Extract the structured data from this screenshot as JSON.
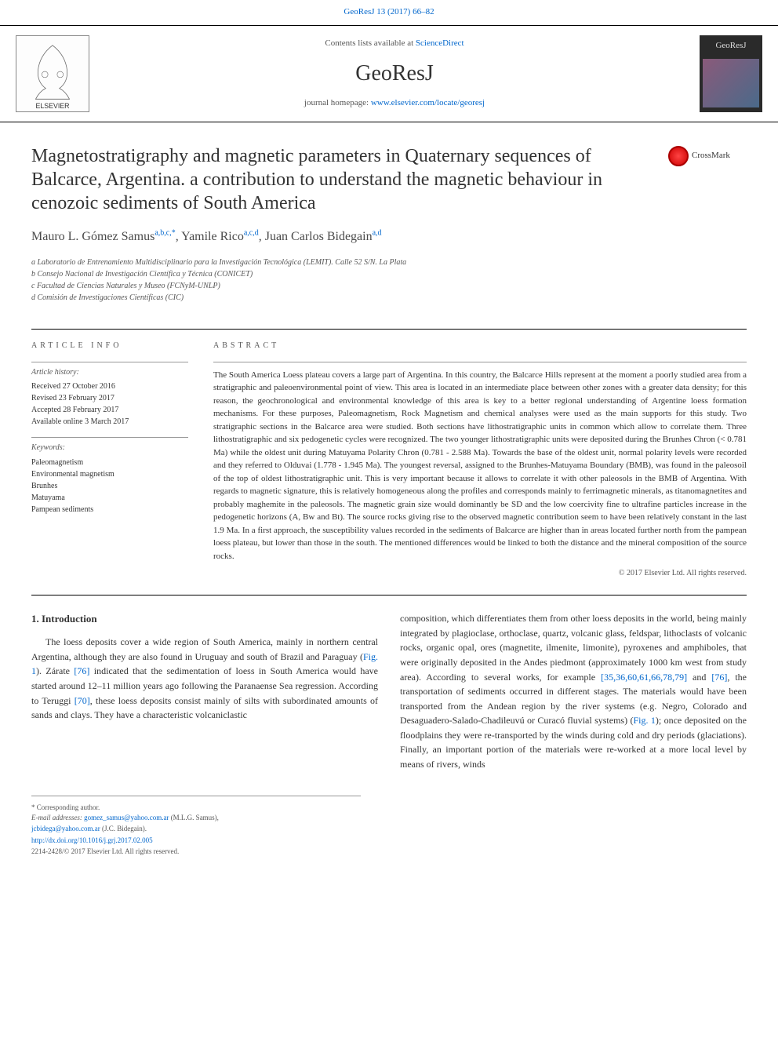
{
  "colors": {
    "link": "#0066cc",
    "text": "#2a2a2a",
    "muted": "#555555",
    "border_dark": "#000000",
    "border_light": "#999999",
    "background": "#ffffff"
  },
  "typography": {
    "body_fontsize": 13,
    "title_fontsize": 24,
    "journal_fontsize": 28,
    "abstract_fontsize": 11,
    "affiliation_fontsize": 10
  },
  "page_citation": "GeoResJ 13 (2017) 66–82",
  "header": {
    "contents_prefix": "Contents lists available at ",
    "contents_link": "ScienceDirect",
    "journal": "GeoResJ",
    "homepage_prefix": "journal homepage: ",
    "homepage_link": "www.elsevier.com/locate/georesj",
    "publisher_logo_alt": "ELSEVIER",
    "cover_title": "GeoResJ"
  },
  "crossmark": "CrossMark",
  "title": "Magnetostratigraphy and magnetic parameters in Quaternary sequences of Balcarce, Argentina. a contribution to understand the magnetic behaviour in cenozoic sediments of South America",
  "authors_html": "Mauro L. Gómez Samus",
  "authors": [
    {
      "name": "Mauro L. Gómez Samus",
      "sup": "a,b,c,*"
    },
    {
      "name": "Yamile Rico",
      "sup": "a,c,d"
    },
    {
      "name": "Juan Carlos Bidegain",
      "sup": "a,d"
    }
  ],
  "affiliations": [
    "a Laboratorio de Entrenamiento Multidisciplinario para la Investigación Tecnológica (LEMIT). Calle 52 S/N. La Plata",
    "b Consejo Nacional de Investigación Científica y Técnica (CONICET)",
    "c Facultad de Ciencias Naturales y Museo (FCNyM-UNLP)",
    "d Comisión de Investigaciones Científicas (CIC)"
  ],
  "article_info": {
    "heading": "article info",
    "history_label": "Article history:",
    "history": [
      "Received 27 October 2016",
      "Revised 23 February 2017",
      "Accepted 28 February 2017",
      "Available online 3 March 2017"
    ],
    "keywords_label": "Keywords:",
    "keywords": [
      "Paleomagnetism",
      "Environmental magnetism",
      "Brunhes",
      "Matuyama",
      "Pampean sediments"
    ]
  },
  "abstract": {
    "heading": "abstract",
    "text": "The South America Loess plateau covers a large part of Argentina. In this country, the Balcarce Hills represent at the moment a poorly studied area from a stratigraphic and paleoenvironmental point of view. This area is located in an intermediate place between other zones with a greater data density; for this reason, the geochronological and environmental knowledge of this area is key to a better regional understanding of Argentine loess formation mechanisms. For these purposes, Paleomagnetism, Rock Magnetism and chemical analyses were used as the main supports for this study. Two stratigraphic sections in the Balcarce area were studied. Both sections have lithostratigraphic units in common which allow to correlate them. Three lithostratigraphic and six pedogenetic cycles were recognized. The two younger lithostratigraphic units were deposited during the Brunhes Chron (< 0.781 Ma) while the oldest unit during Matuyama Polarity Chron (0.781 - 2.588 Ma). Towards the base of the oldest unit, normal polarity levels were recorded and they referred to Olduvai (1.778 - 1.945 Ma). The youngest reversal, assigned to the Brunhes-Matuyama Boundary (BMB), was found in the paleosoil of the top of oldest lithostratigraphic unit. This is very important because it allows to correlate it with other paleosols in the BMB of Argentina. With regards to magnetic signature, this is relatively homogeneous along the profiles and corresponds mainly to ferrimagnetic minerals, as titanomagnetites and probably maghemite in the paleosols. The magnetic grain size would dominantly be SD and the low coercivity fine to ultrafine particles increase in the pedogenetic horizons (A, Bw and Bt). The source rocks giving rise to the observed magnetic contribution seem to have been relatively constant in the last 1.9 Ma. In a first approach, the susceptibility values recorded in the sediments of Balcarce are higher than in areas located further north from the pampean loess plateau, but lower than those in the south. The mentioned differences would be linked to both the distance and the mineral composition of the source rocks.",
    "copyright": "© 2017 Elsevier Ltd. All rights reserved."
  },
  "body": {
    "section_heading": "1. Introduction",
    "col1": "The loess deposits cover a wide region of South America, mainly in northern central Argentina, although they are also found in Uruguay and south of Brazil and Paraguay (Fig. 1). Zárate [76] indicated that the sedimentation of loess in South America would have started around 12–11 million years ago following the Paranaense Sea regression. According to Teruggi [70], these loess deposits consist mainly of silts with subordinated amounts of sands and clays. They have a characteristic volcaniclastic",
    "col1_refs": {
      "fig": "Fig. 1",
      "r76": "[76]",
      "r70": "[70]"
    },
    "col2": "composition, which differentiates them from other loess deposits in the world, being mainly integrated by plagioclase, orthoclase, quartz, volcanic glass, feldspar, lithoclasts of volcanic rocks, organic opal, ores (magnetite, ilmenite, limonite), pyroxenes and amphiboles, that were originally deposited in the Andes piedmont (approximately 1000 km west from study area). According to several works, for example [35,36,60,61,66,78,79] and [76], the transportation of sediments occurred in different stages. The materials would have been transported from the Andean region by the river systems (e.g. Negro, Colorado and Desaguadero-Salado-Chadileuvú or Curacó fluvial systems) (Fig. 1); once deposited on the floodplains they were re-transported by the winds during cold and dry periods (glaciations). Finally, an important portion of the materials were re-worked at a more local level by means of rivers, winds",
    "col2_refs": {
      "rmulti": "[35,36,60,61,66,78,79]",
      "r76": "[76]",
      "fig": "Fig. 1"
    }
  },
  "footer": {
    "corresponding": "* Corresponding author.",
    "email_label": "E-mail addresses: ",
    "email1": "gomez_samus@yahoo.com.ar",
    "email1_name": " (M.L.G. Samus), ",
    "email2": "jcbidega@yahoo.com.ar",
    "email2_name": " (J.C. Bidegain).",
    "doi": "http://dx.doi.org/10.1016/j.grj.2017.02.005",
    "issn_line": "2214-2428/© 2017 Elsevier Ltd. All rights reserved."
  }
}
